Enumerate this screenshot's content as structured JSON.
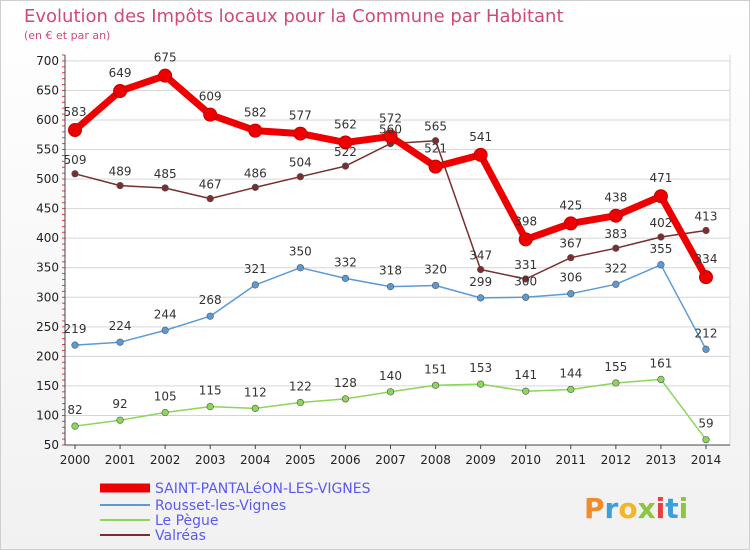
{
  "chart_data": {
    "type": "line",
    "title": "Evolution des Impôts locaux pour la Commune par Habitant",
    "subtitle": "(en € et par an)",
    "xlabel": "",
    "ylabel": "",
    "x": [
      2000,
      2001,
      2002,
      2003,
      2004,
      2005,
      2006,
      2007,
      2008,
      2009,
      2010,
      2011,
      2012,
      2013,
      2014
    ],
    "yticks": [
      50,
      100,
      150,
      200,
      250,
      300,
      350,
      400,
      450,
      500,
      550,
      600,
      650,
      700
    ],
    "ylim": [
      50,
      710
    ],
    "grid": "horizontal",
    "legend": "bottom-left",
    "series": [
      {
        "name": "SAINT-PANTALéON-LES-VIGNES",
        "color": "#ee0000",
        "values": [
          583,
          649,
          675,
          609,
          582,
          577,
          562,
          572,
          521,
          541,
          398,
          425,
          438,
          471,
          334
        ]
      },
      {
        "name": "Rousset-les-Vignes",
        "color": "#5b9bd5",
        "values": [
          219,
          224,
          244,
          268,
          321,
          350,
          332,
          318,
          320,
          299,
          300,
          306,
          322,
          355,
          212
        ]
      },
      {
        "name": "Le Pègue",
        "color": "#8cd65a",
        "values": [
          82,
          92,
          105,
          115,
          112,
          122,
          128,
          140,
          151,
          153,
          141,
          144,
          155,
          161,
          59
        ]
      },
      {
        "name": "Valréas",
        "color": "#7a2e2e",
        "values": [
          509,
          489,
          485,
          467,
          486,
          504,
          522,
          560,
          565,
          347,
          331,
          367,
          383,
          402,
          413
        ]
      }
    ]
  },
  "brand": {
    "letters": [
      "P",
      "r",
      "o",
      "x",
      "i",
      "t",
      "i"
    ],
    "colors": [
      "#f28c28",
      "#3aa0dc",
      "#f2b628",
      "#8cc63f",
      "#e8403a",
      "#3aa0dc",
      "#8cc63f"
    ]
  }
}
